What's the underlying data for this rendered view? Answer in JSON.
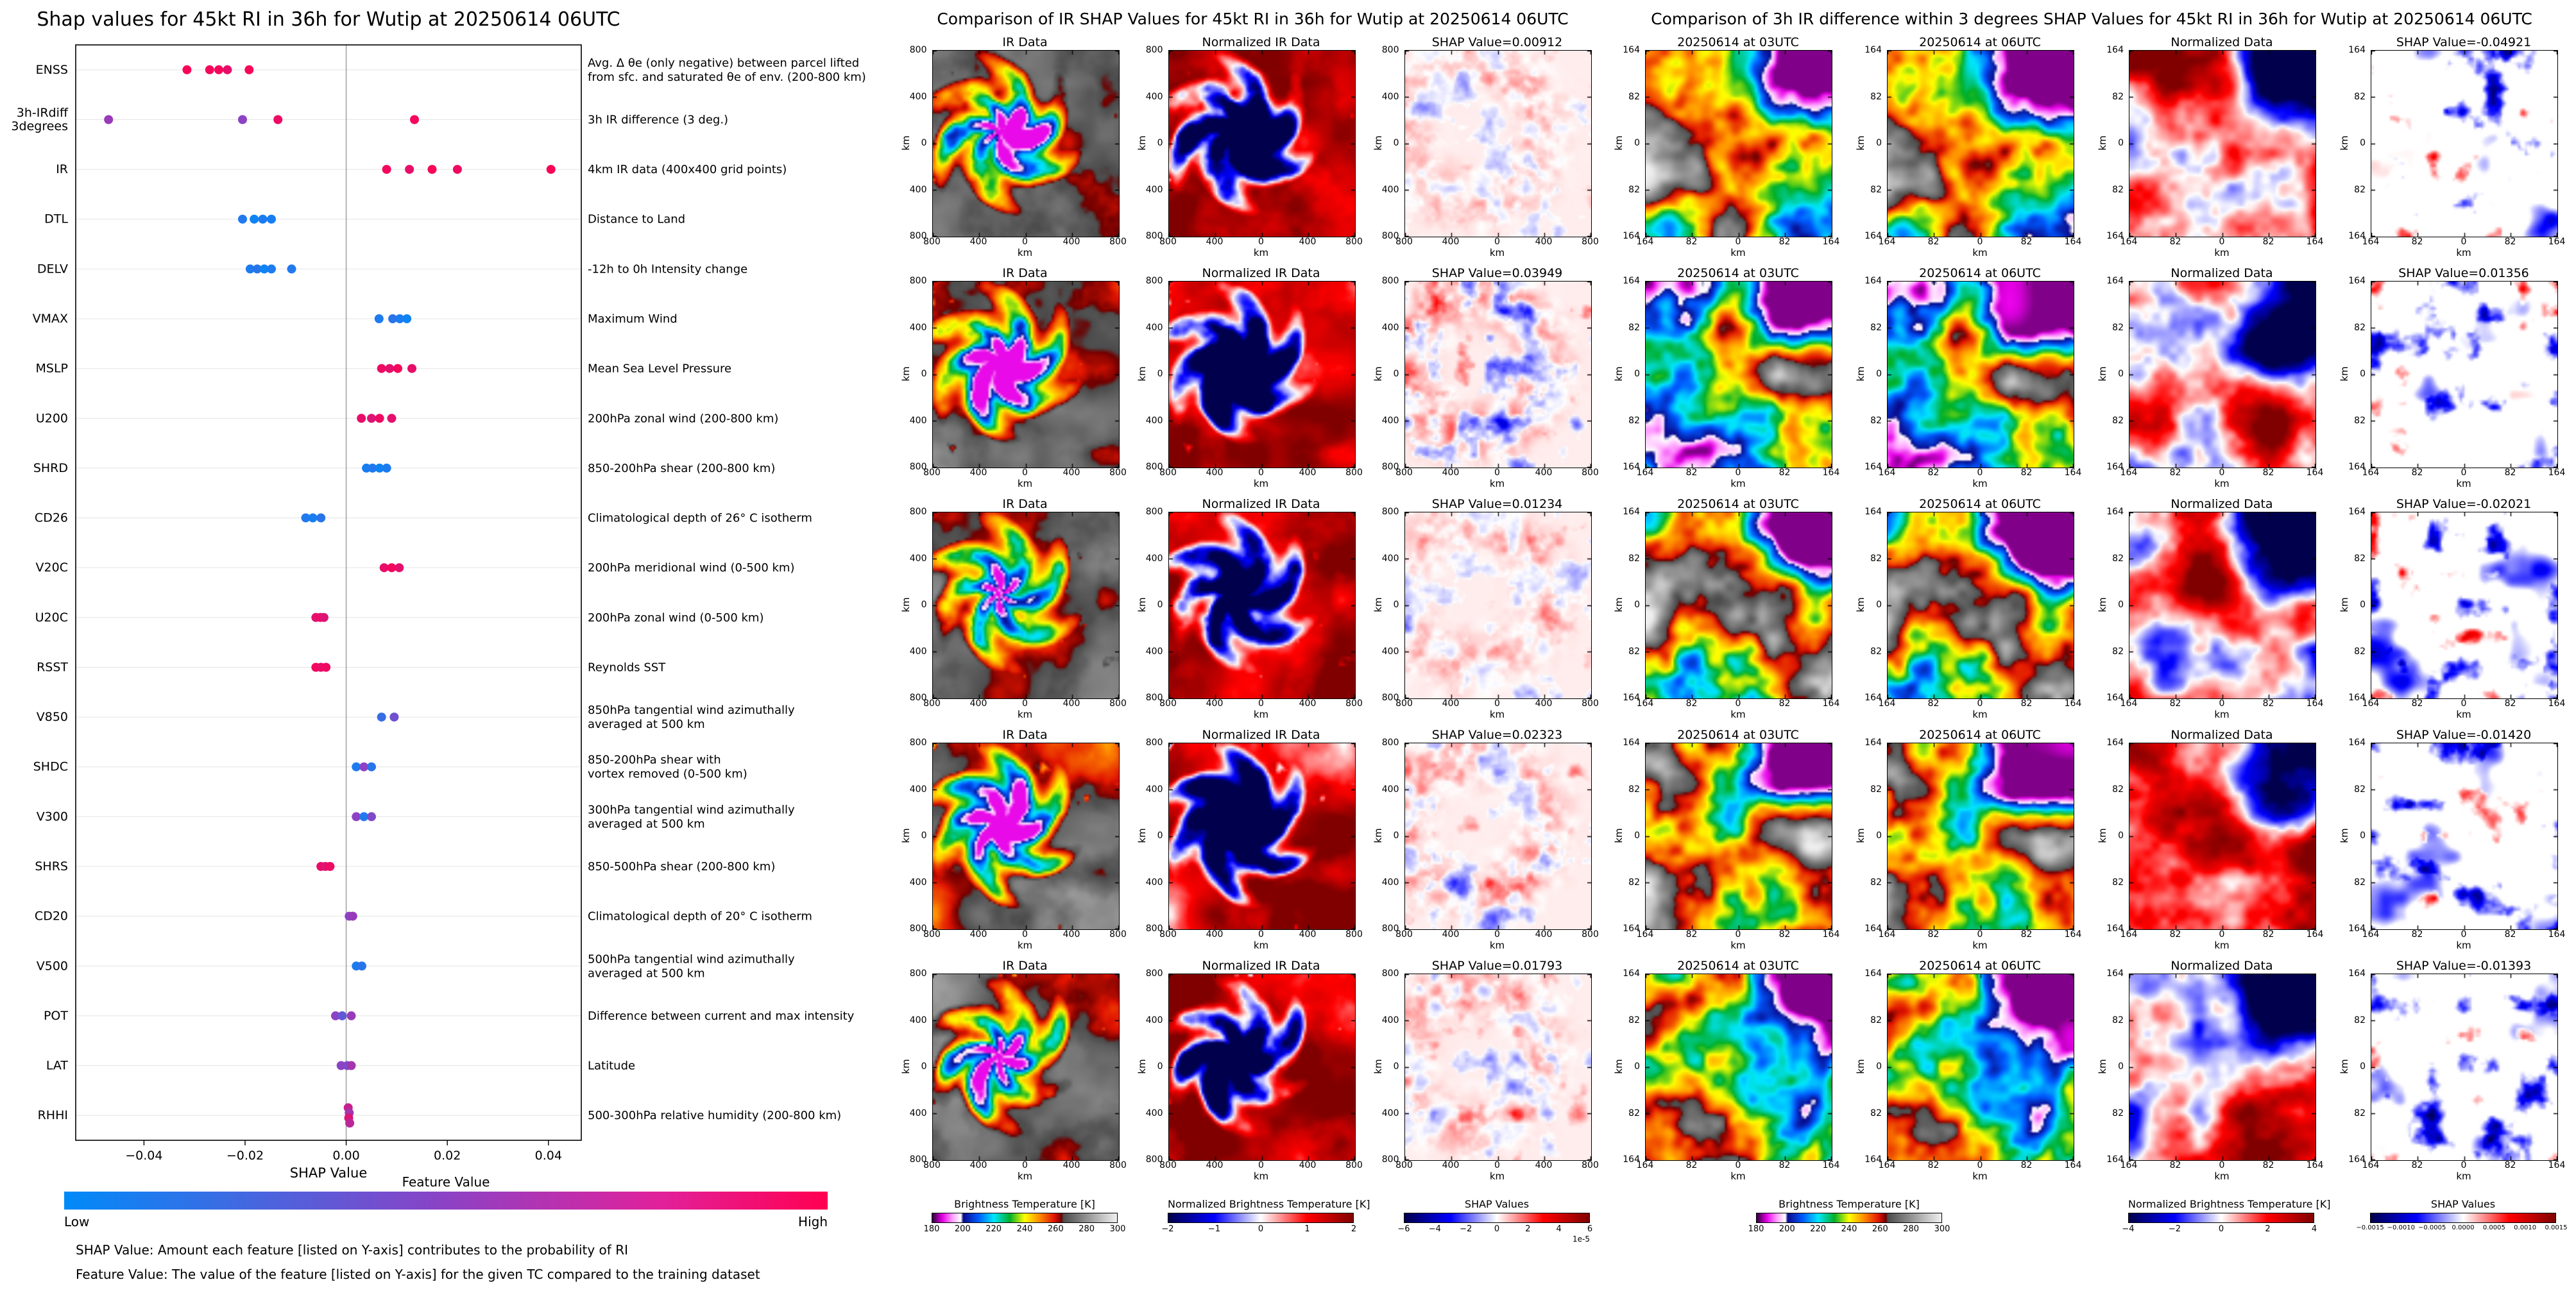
{
  "chart_data": [
    {
      "type": "scatter",
      "variant": "shap-beeswarm",
      "title": "Shap values for 45kt RI in 36h for Wutip at 20250614 06UTC",
      "xlabel": "SHAP Value",
      "xlim": [
        -0.0535,
        0.0465
      ],
      "x_tick_values": [
        -0.04,
        -0.02,
        0,
        0.02,
        0.04
      ],
      "x_tick_labels": [
        "−0.04",
        "−0.02",
        "0.00",
        "0.02",
        "0.04"
      ],
      "colorbar": {
        "title": "Feature Value",
        "low_label": "Low",
        "high_label": "High",
        "stops": [
          {
            "offset": "0%",
            "color": "#008af9"
          },
          {
            "offset": "50%",
            "color": "#8c42c5"
          },
          {
            "offset": "78%",
            "color": "#e1219b"
          },
          {
            "offset": "100%",
            "color": "#ff0051"
          }
        ]
      },
      "footnotes": [
        "SHAP Value: Amount each feature [listed on Y-axis] contributes to the probability of RI",
        "Feature Value: The value of the feature [listed on Y-axis] for the given TC compared to the training dataset"
      ],
      "features": [
        {
          "name": [
            "ENSS"
          ],
          "desc": [
            "Avg. Δ θe (only negative) between parcel lifted",
            "from sfc. and saturated θe of env. (200-800 km)"
          ],
          "points": [
            [
              -0.0315,
              0.97
            ],
            [
              -0.027,
              0.95
            ],
            [
              -0.0252,
              0.96
            ],
            [
              -0.0235,
              0.9
            ],
            [
              -0.0192,
              0.97
            ]
          ]
        },
        {
          "name": [
            "3h-IRdiff",
            "3degrees"
          ],
          "desc": [
            "3h IR difference (3 deg.)"
          ],
          "points": [
            [
              -0.047,
              0.55
            ],
            [
              -0.0205,
              0.5
            ],
            [
              -0.0135,
              0.92
            ],
            [
              0.0135,
              0.95
            ]
          ]
        },
        {
          "name": [
            "IR"
          ],
          "desc": [
            "4km IR data (400x400 grid points)"
          ],
          "points": [
            [
              0.008,
              0.95
            ],
            [
              0.0125,
              0.9
            ],
            [
              0.017,
              0.97
            ],
            [
              0.022,
              0.93
            ],
            [
              0.0405,
              0.98
            ]
          ]
        },
        {
          "name": [
            "DTL"
          ],
          "desc": [
            "Distance to Land"
          ],
          "points": [
            [
              -0.0205,
              0.12
            ],
            [
              -0.0182,
              0.05
            ],
            [
              -0.0165,
              0.1
            ],
            [
              -0.0148,
              0.08
            ]
          ]
        },
        {
          "name": [
            "DELV"
          ],
          "desc": [
            "-12h to 0h Intensity change"
          ],
          "points": [
            [
              -0.019,
              0.1
            ],
            [
              -0.0176,
              0.15
            ],
            [
              -0.0162,
              0.05
            ],
            [
              -0.0148,
              0.1
            ],
            [
              -0.0108,
              0.12
            ]
          ]
        },
        {
          "name": [
            "VMAX"
          ],
          "desc": [
            "Maximum Wind"
          ],
          "points": [
            [
              0.0065,
              0.1
            ],
            [
              0.0092,
              0.15
            ],
            [
              0.0106,
              0.1
            ],
            [
              0.012,
              0.05
            ]
          ]
        },
        {
          "name": [
            "MSLP"
          ],
          "desc": [
            "Mean Sea Level Pressure"
          ],
          "points": [
            [
              0.007,
              0.92
            ],
            [
              0.0086,
              0.88
            ],
            [
              0.0102,
              0.95
            ],
            [
              0.013,
              0.9
            ]
          ]
        },
        {
          "name": [
            "U200"
          ],
          "desc": [
            "200hPa zonal wind (200-800 km)"
          ],
          "points": [
            [
              0.003,
              0.9
            ],
            [
              0.005,
              0.85
            ],
            [
              0.0066,
              0.92
            ],
            [
              0.009,
              0.88
            ]
          ]
        },
        {
          "name": [
            "SHRD"
          ],
          "desc": [
            "850-200hPa shear (200-800 km)"
          ],
          "points": [
            [
              0.004,
              0.08
            ],
            [
              0.0052,
              0.12
            ],
            [
              0.0066,
              0.05
            ],
            [
              0.008,
              0.1
            ]
          ]
        },
        {
          "name": [
            "CD26"
          ],
          "desc": [
            "Climatological depth of 26° C isotherm"
          ],
          "points": [
            [
              -0.008,
              0.12
            ],
            [
              -0.0066,
              0.08
            ],
            [
              -0.005,
              0.15
            ]
          ]
        },
        {
          "name": [
            "V20C"
          ],
          "desc": [
            "200hPa meridional wind (0-500 km)"
          ],
          "points": [
            [
              0.0075,
              0.9
            ],
            [
              0.009,
              0.95
            ],
            [
              0.0105,
              0.88
            ]
          ]
        },
        {
          "name": [
            "U20C"
          ],
          "desc": [
            "200hPa zonal wind (0-500 km)"
          ],
          "points": [
            [
              -0.006,
              0.88
            ],
            [
              -0.0051,
              0.92
            ],
            [
              -0.0044,
              0.85
            ]
          ]
        },
        {
          "name": [
            "RSST"
          ],
          "desc": [
            "Reynolds SST"
          ],
          "points": [
            [
              -0.006,
              0.95
            ],
            [
              -0.005,
              0.9
            ],
            [
              -0.004,
              0.93
            ]
          ]
        },
        {
          "name": [
            "V850"
          ],
          "desc": [
            "850hPa tangential wind azimuthally",
            "averaged at 500 km"
          ],
          "points": [
            [
              0.007,
              0.2
            ],
            [
              0.0095,
              0.4
            ]
          ]
        },
        {
          "name": [
            "SHDC"
          ],
          "desc": [
            "850-200hPa shear with",
            "vortex removed (0-500 km)"
          ],
          "points": [
            [
              0.002,
              0.1
            ],
            [
              0.0035,
              0.5
            ],
            [
              0.005,
              0.15
            ]
          ]
        },
        {
          "name": [
            "V300"
          ],
          "desc": [
            "300hPa tangential wind azimuthally",
            "averaged at 500 km"
          ],
          "points": [
            [
              0.002,
              0.5
            ],
            [
              0.0035,
              0.12
            ],
            [
              0.005,
              0.45
            ]
          ]
        },
        {
          "name": [
            "SHRS"
          ],
          "desc": [
            "850-500hPa shear (200-800 km)"
          ],
          "points": [
            [
              -0.005,
              0.9
            ],
            [
              -0.0041,
              0.85
            ],
            [
              -0.0032,
              0.92
            ]
          ]
        },
        {
          "name": [
            "CD20"
          ],
          "desc": [
            "Climatological depth of 20° C isotherm"
          ],
          "points": [
            [
              0.0006,
              0.5
            ],
            [
              0.0013,
              0.55
            ]
          ]
        },
        {
          "name": [
            "V500"
          ],
          "desc": [
            "500hPa tangential wind azimuthally",
            "averaged at 500 km"
          ],
          "points": [
            [
              0.002,
              0.1
            ],
            [
              0.0031,
              0.15
            ]
          ]
        },
        {
          "name": [
            "POT"
          ],
          "desc": [
            "Difference between current and max intensity"
          ],
          "points": [
            [
              -0.0021,
              0.5
            ],
            [
              -0.0008,
              0.35
            ],
            [
              0.001,
              0.55
            ]
          ]
        },
        {
          "name": [
            "LAT"
          ],
          "desc": [
            "Latitude"
          ],
          "points": [
            [
              -0.001,
              0.5
            ],
            [
              0.0002,
              0.45
            ],
            [
              0.001,
              0.6
            ]
          ]
        },
        {
          "name": [
            "RHHI"
          ],
          "desc": [
            "500-300hPa relative humidity (200-800 km)"
          ],
          "points": [
            [
              0.0004,
              0.75,
              -12
            ],
            [
              0.0006,
              0.6,
              -4
            ],
            [
              0.0005,
              0.85,
              4
            ],
            [
              0.0007,
              0.7,
              12
            ]
          ]
        }
      ]
    },
    {
      "type": "heatmap",
      "variant": "ir-shap-grid",
      "title": "Comparison of IR SHAP Values for 45kt RI in 36h for Wutip at 20250614 06UTC",
      "columns": [
        "IR Data",
        "Normalized IR Data"
      ],
      "rows": [
        {
          "shap_label": "SHAP Value=0.00912",
          "shap_value": 0.00912
        },
        {
          "shap_label": "SHAP Value=0.03949",
          "shap_value": 0.03949
        },
        {
          "shap_label": "SHAP Value=0.01234",
          "shap_value": 0.01234
        },
        {
          "shap_label": "SHAP Value=0.02323",
          "shap_value": 0.02323
        },
        {
          "shap_label": "SHAP Value=0.01793",
          "shap_value": 0.01793
        }
      ],
      "axis_ticks": [
        "800",
        "400",
        "0",
        "400",
        "800"
      ],
      "axis_label": "km",
      "colorbars": [
        {
          "label": "Brightness Temperature [K]",
          "gradient": "ir",
          "ticks": [
            "180",
            "200",
            "220",
            "240",
            "260",
            "280",
            "300"
          ]
        },
        {
          "label": "Normalized Brightness Temperature [K]",
          "gradient": "seismic",
          "ticks": [
            "−2",
            "−1",
            "0",
            "1",
            "2"
          ]
        },
        {
          "label": "SHAP Values",
          "gradient": "seismic",
          "ticks": [
            "−6",
            "−4",
            "−2",
            "0",
            "2",
            "4",
            "6"
          ],
          "note": "1e-5"
        }
      ]
    },
    {
      "type": "heatmap",
      "variant": "ir3h-diff-shap-grid",
      "title": "Comparison of 3h IR difference within 3 degrees SHAP Values for 45kt RI in 36h for Wutip at 20250614 06UTC",
      "columns": [
        "20250614 at 03UTC",
        "20250614 at 06UTC",
        "Normalized Data"
      ],
      "rows": [
        {
          "shap_label": "SHAP Value=-0.04921",
          "shap_value": -0.04921
        },
        {
          "shap_label": "SHAP Value=0.01356",
          "shap_value": 0.01356
        },
        {
          "shap_label": "SHAP Value=-0.02021",
          "shap_value": -0.02021
        },
        {
          "shap_label": "SHAP Value=-0.01420",
          "shap_value": -0.0142
        },
        {
          "shap_label": "SHAP Value=-0.01393",
          "shap_value": -0.01393
        }
      ],
      "axis_ticks": [
        "164",
        "82",
        "0",
        "82",
        "164"
      ],
      "axis_label": "km",
      "colorbars": [
        {
          "label": "Brightness Temperature [K]",
          "gradient": "ir",
          "ticks": [
            "180",
            "200",
            "220",
            "240",
            "260",
            "280",
            "300"
          ]
        },
        {
          "label": "Normalized Brightness Temperature [K]",
          "gradient": "seismic",
          "ticks": [
            "−4",
            "−2",
            "0",
            "2",
            "4"
          ]
        },
        {
          "label": "SHAP Values",
          "gradient": "seismic",
          "small": true,
          "ticks": [
            "−0.0015",
            "−0.0010",
            "−0.0005",
            "0.0000",
            "0.0005",
            "0.0010",
            "0.0015"
          ]
        }
      ]
    }
  ]
}
